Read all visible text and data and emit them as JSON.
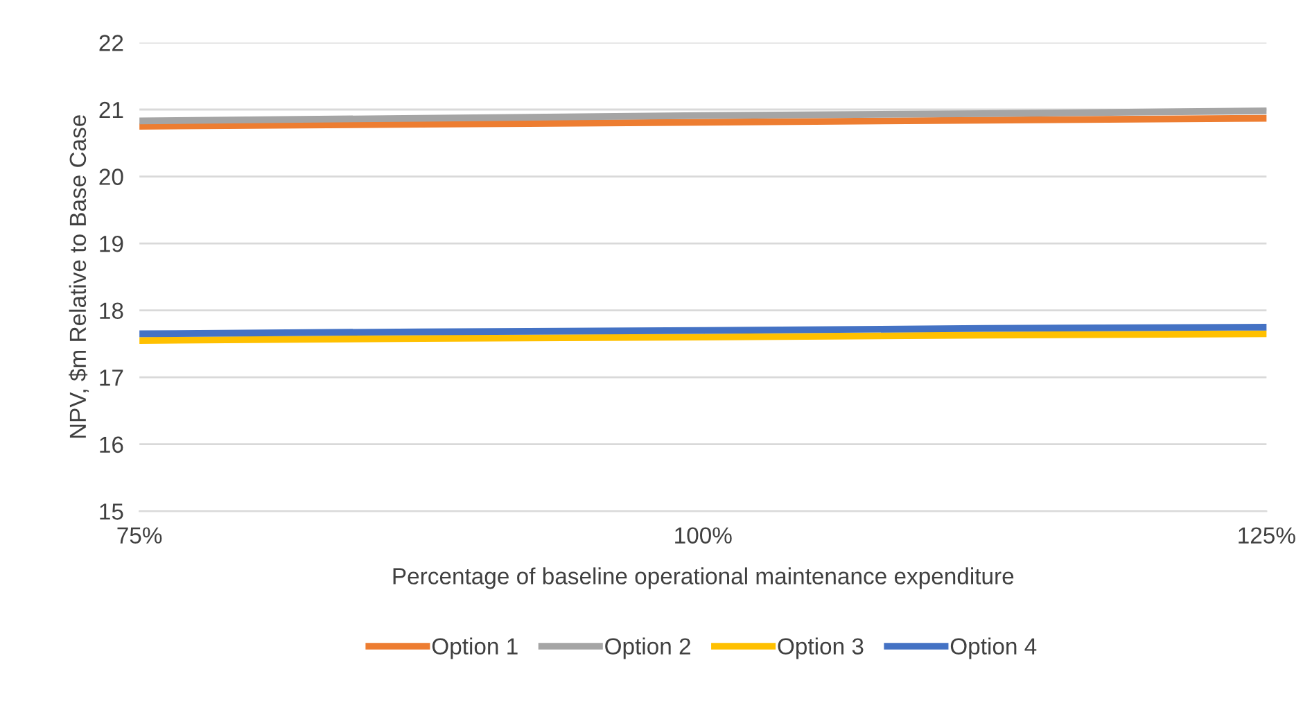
{
  "chart_data": {
    "type": "line",
    "xlabel": "Percentage of baseline operational maintenance expenditure",
    "ylabel": "NPV, $m Relative to Base Case",
    "x": [
      75,
      87.5,
      100,
      112.5,
      125
    ],
    "series": [
      {
        "name": "Option 1",
        "color": "#ed7d31",
        "values": [
          20.75,
          20.78,
          20.81,
          20.84,
          20.87
        ]
      },
      {
        "name": "Option 2",
        "color": "#a5a5a5",
        "values": [
          20.83,
          20.87,
          20.91,
          20.94,
          20.98
        ]
      },
      {
        "name": "Option 3",
        "color": "#ffc000",
        "values": [
          17.55,
          17.58,
          17.6,
          17.63,
          17.65
        ]
      },
      {
        "name": "Option 4",
        "color": "#4472c4",
        "values": [
          17.65,
          17.68,
          17.7,
          17.73,
          17.75
        ]
      }
    ],
    "xlim": [
      75,
      125
    ],
    "xticks": [
      {
        "value": 75,
        "label": "75%"
      },
      {
        "value": 100,
        "label": "100%"
      },
      {
        "value": 125,
        "label": "125%"
      }
    ],
    "ylim": [
      15,
      22
    ],
    "yticks": [
      15,
      16,
      17,
      18,
      19,
      20,
      21,
      22
    ],
    "grid": "y",
    "legend": "bottom",
    "marker": "none",
    "line_style": "solid"
  }
}
